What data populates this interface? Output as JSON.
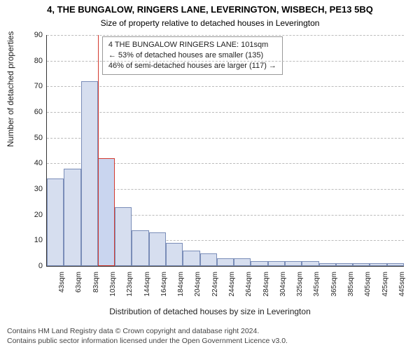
{
  "title_line1": "4, THE BUNGALOW, RINGERS LANE, LEVERINGTON, WISBECH, PE13 5BQ",
  "title_line2": "Size of property relative to detached houses in Leverington",
  "title1_fontsize": 13,
  "title2_fontsize": 12,
  "y_axis": {
    "title": "Number of detached properties",
    "min": 0,
    "max": 90,
    "tick_step": 10,
    "label_fontsize": 11,
    "title_fontsize": 12
  },
  "x_axis": {
    "title": "Distribution of detached houses by size in Leverington",
    "labels": [
      "43sqm",
      "63sqm",
      "83sqm",
      "103sqm",
      "123sqm",
      "144sqm",
      "164sqm",
      "184sqm",
      "204sqm",
      "224sqm",
      "244sqm",
      "264sqm",
      "284sqm",
      "304sqm",
      "325sqm",
      "345sqm",
      "365sqm",
      "385sqm",
      "405sqm",
      "425sqm",
      "445sqm"
    ],
    "label_fontsize": 10,
    "title_fontsize": 12
  },
  "chart": {
    "type": "histogram",
    "bar_fill": "#d6deef",
    "bar_stroke": "#7a8db8",
    "highlight_fill": "#c9d5ef",
    "highlight_stroke": "#d43a2f",
    "values": [
      34,
      38,
      72,
      42,
      23,
      14,
      13,
      9,
      6,
      5,
      3,
      3,
      2,
      2,
      2,
      2,
      1,
      1,
      1,
      1,
      1
    ],
    "highlight_index": 3,
    "bar_width_ratio": 1.0,
    "background_color": "#ffffff",
    "grid_color": "#bbbbbb"
  },
  "marker_line": {
    "color": "#d43a2f",
    "width": 1,
    "position_index": 3,
    "position_offset": 0.0
  },
  "legend": {
    "lines": [
      "4 THE BUNGALOW RINGERS LANE: 101sqm",
      "← 53% of detached houses are smaller (135)",
      "46% of semi-detached houses are larger (117) →"
    ],
    "border_color": "#999999",
    "background": "#ffffff",
    "fontsize": 11
  },
  "footer": {
    "line1": "Contains HM Land Registry data © Crown copyright and database right 2024.",
    "line2": "Contains public sector information licensed under the Open Government Licence v3.0.",
    "fontsize": 10.5,
    "color": "#444444"
  }
}
